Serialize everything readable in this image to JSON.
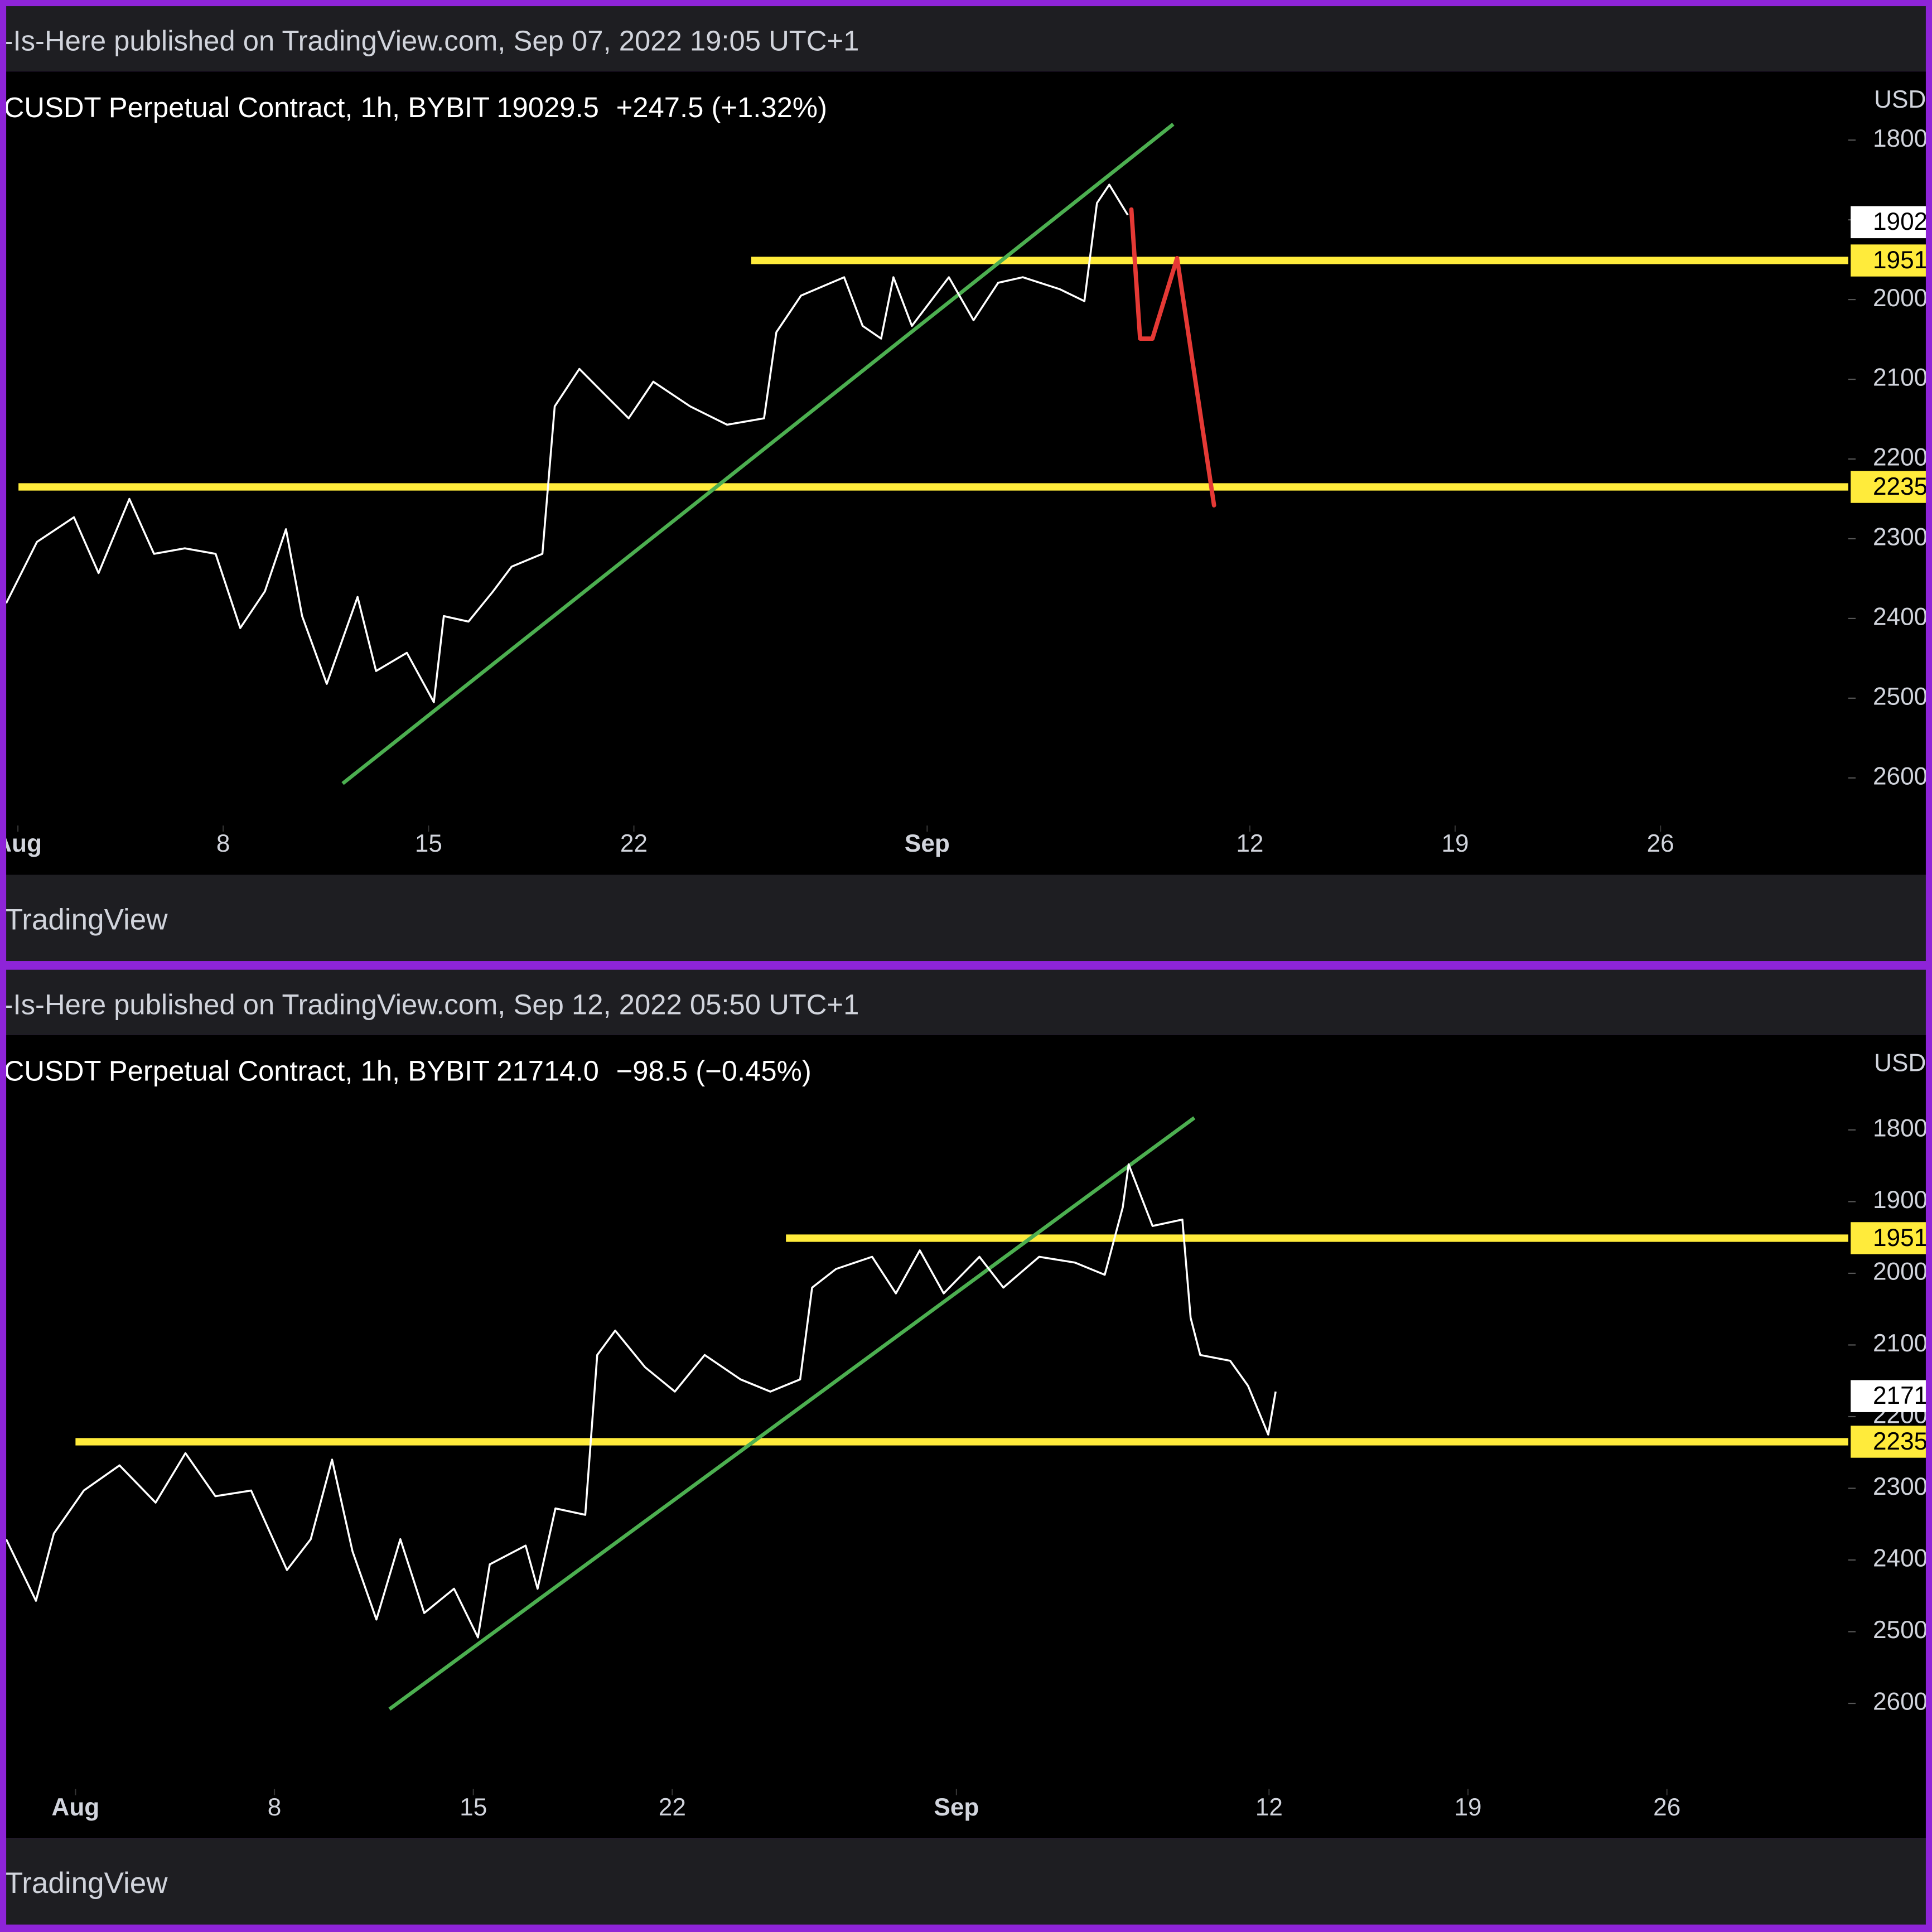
{
  "chart_data": [
    {
      "type": "line",
      "header": "-Is-Here published on TradingView.com, Sep 07, 2022 19:05 UTC+1",
      "legend": {
        "symbol": "CUSDT Perpetual Contract, 1h, BYBIT",
        "price": "19029.5",
        "change": "+247.5 (+1.32%)"
      },
      "currency": "USD",
      "footer": "TradingView",
      "x": [
        0.6,
        1.65,
        2.91,
        3.75,
        4.8,
        5.64,
        6.69,
        7.74,
        8.58,
        9.42,
        10.14,
        10.69,
        11.53,
        12.58,
        13.21,
        14.26,
        15.18,
        15.52,
        16.36,
        17.2,
        17.83,
        18.88,
        19.3,
        20.14,
        20.98,
        21.82,
        22.66,
        23.92,
        25.18,
        26.44,
        26.86,
        27.7,
        29.17,
        29.8,
        30.43,
        30.85,
        31.48,
        32.74,
        33.58,
        34.42,
        35.26,
        36.52,
        37.36,
        37.79,
        38.21,
        38.84
      ],
      "series": [
        {
          "color": "#ffffff",
          "values": [
            23810,
            23040,
            22730,
            23430,
            22500,
            23190,
            23120,
            23190,
            24120,
            23660,
            22880,
            23970,
            24820,
            23730,
            24660,
            24430,
            25050,
            23970,
            24040,
            23660,
            23350,
            23190,
            21340,
            20870,
            21180,
            21490,
            21030,
            21340,
            21570,
            21490,
            20410,
            19950,
            19720,
            20330,
            20490,
            19720,
            20330,
            19720,
            20260,
            19790,
            19720,
            19870,
            20020,
            18790,
            18560,
            18940
          ]
        }
      ],
      "xlim": [
        0.6,
        63.4
      ],
      "xticks": [
        {
          "value": 1,
          "label": "Aug",
          "bold": true
        },
        8,
        15,
        22,
        {
          "value": 32,
          "label": "Sep",
          "bold": true
        },
        {
          "value": 43,
          "label": "12"
        },
        {
          "value": 50,
          "label": "19"
        },
        {
          "value": 57,
          "label": "26"
        }
      ],
      "ylim": [
        26520,
        17170
      ],
      "yticks": [
        {
          "value": 18000,
          "label": "1800"
        },
        {
          "value": 19000,
          "label": "1900"
        },
        {
          "value": 20000,
          "label": "2000"
        },
        {
          "value": 21000,
          "label": "2100"
        },
        {
          "value": 22000,
          "label": "2200"
        },
        {
          "value": 23000,
          "label": "2300"
        },
        {
          "value": 24000,
          "label": "2400"
        },
        {
          "value": 25000,
          "label": "2500"
        },
        {
          "value": 26000,
          "label": "2600"
        }
      ],
      "levels": [
        {
          "value": 19510,
          "label": "1951",
          "start": 26.0,
          "color": "#ffeb3b"
        },
        {
          "value": 22350,
          "label": "2235",
          "start": 1.02,
          "color": "#ffeb3b"
        }
      ],
      "trendline": {
        "x": [
          12.07,
          40.39
        ],
        "values": [
          26070,
          17800
        ],
        "color": "#4caf50"
      },
      "projection": {
        "x": [
          38.96,
          39.26,
          39.68,
          40.52,
          41.78
        ],
        "values": [
          18870,
          20490,
          20490,
          19480,
          22580
        ],
        "color": "#e53935"
      },
      "last_price": {
        "value": 19029.5,
        "label": "1902"
      }
    },
    {
      "type": "line",
      "header": "-Is-Here published on TradingView.com, Sep 12, 2022 05:50 UTC+1",
      "legend": {
        "symbol": "CUSDT Perpetual Contract, 1h, BYBIT",
        "price": "21714.0",
        "change": "−98.5 (−0.45%)"
      },
      "currency": "USD",
      "footer": "TradingView",
      "x": [
        -1.44,
        -0.39,
        0.24,
        1.29,
        2.55,
        3.82,
        4.87,
        5.92,
        7.18,
        8.44,
        9.28,
        10.03,
        10.75,
        11.59,
        12.43,
        13.27,
        14.32,
        15.16,
        15.58,
        16.84,
        17.26,
        17.89,
        18.94,
        19.36,
        19.99,
        21.04,
        22.09,
        23.14,
        24.4,
        25.45,
        26.5,
        26.92,
        27.76,
        29.03,
        29.87,
        30.71,
        31.55,
        32.81,
        33.65,
        34.91,
        36.17,
        37.22,
        37.85,
        38.06,
        38.9,
        39.95,
        40.24,
        40.58,
        41.63,
        42.26,
        42.97,
        43.23
      ],
      "series": [
        {
          "color": "#ffffff",
          "values": [
            23710,
            24570,
            23630,
            23030,
            22680,
            23200,
            22510,
            23110,
            23030,
            24140,
            23710,
            22600,
            23880,
            24830,
            23710,
            24740,
            24400,
            25080,
            24060,
            23800,
            24400,
            23280,
            23370,
            21140,
            20800,
            21310,
            21650,
            21140,
            21480,
            21650,
            21480,
            20200,
            19940,
            19770,
            20280,
            19680,
            20280,
            19770,
            20200,
            19770,
            19850,
            20020,
            19080,
            18480,
            19340,
            19250,
            20620,
            21140,
            21220,
            21570,
            22250,
            21650
          ]
        }
      ],
      "xlim": [
        -1.44,
        63.38
      ],
      "xticks": [
        {
          "value": 1,
          "label": "Aug",
          "bold": true
        },
        8,
        15,
        22,
        {
          "value": 32,
          "label": "Sep",
          "bold": true
        },
        {
          "value": 43,
          "label": "12"
        },
        {
          "value": 50,
          "label": "19"
        },
        {
          "value": 57,
          "label": "26"
        }
      ],
      "ylim": [
        27110,
        16710
      ],
      "yticks": [
        {
          "value": 18000,
          "label": "1800"
        },
        {
          "value": 19000,
          "label": "1900"
        },
        {
          "value": 20000,
          "label": "2000"
        },
        {
          "value": 21000,
          "label": "2100"
        },
        {
          "value": 22000,
          "label": "2200"
        },
        {
          "value": 23000,
          "label": "2300"
        },
        {
          "value": 24000,
          "label": "2400"
        },
        {
          "value": 25000,
          "label": "2500"
        },
        {
          "value": 26000,
          "label": "2600"
        }
      ],
      "levels": [
        {
          "value": 19510,
          "label": "1951",
          "start": 26.0,
          "color": "#ffeb3b"
        },
        {
          "value": 22350,
          "label": "2235",
          "start": 1.0,
          "color": "#ffeb3b"
        }
      ],
      "trendline": {
        "x": [
          12.05,
          40.37
        ],
        "values": [
          26080,
          17830
        ],
        "color": "#4caf50"
      },
      "last_price": {
        "value": 21714.0,
        "label": "2171"
      }
    }
  ]
}
